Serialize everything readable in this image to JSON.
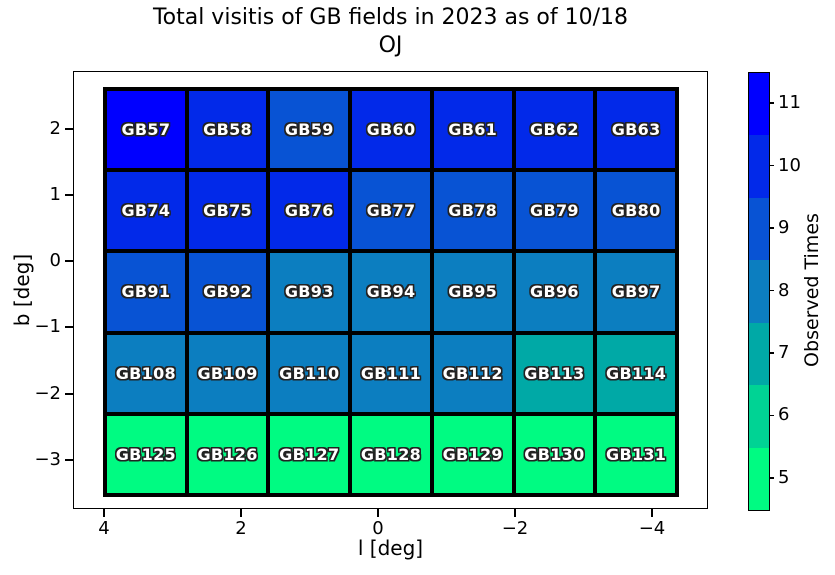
{
  "chart_data": {
    "type": "heatmap",
    "title": "Total visitis of GB fields in 2023 as of 10/18",
    "subtitle": "OJ",
    "xlabel": "l [deg]",
    "ylabel": "b [deg]",
    "x_tick_labels": [
      "4",
      "2",
      "0",
      "−2",
      "−4"
    ],
    "y_tick_labels": [
      "2",
      "1",
      "0",
      "−1",
      "−2",
      "−3"
    ],
    "x_axis_reversed": true,
    "grid_shape": {
      "rows": 5,
      "cols": 7
    },
    "colorbar": {
      "label": "Observed Times",
      "range": [
        4.5,
        11.5
      ],
      "tick_labels": [
        "11",
        "10",
        "9",
        "8",
        "7",
        "6",
        "5"
      ],
      "bins": [
        {
          "value": 11,
          "color": "#0000ff"
        },
        {
          "value": 10,
          "color": "#0229e9"
        },
        {
          "value": 9,
          "color": "#0853d4"
        },
        {
          "value": 8,
          "color": "#0c7ec0"
        },
        {
          "value": 7,
          "color": "#00a9a6"
        },
        {
          "value": 6,
          "color": "#00d394"
        },
        {
          "value": 5,
          "color": "#00fb82"
        }
      ]
    },
    "rows": [
      {
        "cells": [
          {
            "label": "GB57",
            "value": 11
          },
          {
            "label": "GB58",
            "value": 10
          },
          {
            "label": "GB59",
            "value": 9
          },
          {
            "label": "GB60",
            "value": 10
          },
          {
            "label": "GB61",
            "value": 10
          },
          {
            "label": "GB62",
            "value": 10
          },
          {
            "label": "GB63",
            "value": 10
          }
        ]
      },
      {
        "cells": [
          {
            "label": "GB74",
            "value": 10
          },
          {
            "label": "GB75",
            "value": 10
          },
          {
            "label": "GB76",
            "value": 10
          },
          {
            "label": "GB77",
            "value": 9
          },
          {
            "label": "GB78",
            "value": 9
          },
          {
            "label": "GB79",
            "value": 9
          },
          {
            "label": "GB80",
            "value": 9
          }
        ]
      },
      {
        "cells": [
          {
            "label": "GB91",
            "value": 9
          },
          {
            "label": "GB92",
            "value": 9
          },
          {
            "label": "GB93",
            "value": 8
          },
          {
            "label": "GB94",
            "value": 8
          },
          {
            "label": "GB95",
            "value": 8
          },
          {
            "label": "GB96",
            "value": 8
          },
          {
            "label": "GB97",
            "value": 8
          }
        ]
      },
      {
        "cells": [
          {
            "label": "GB108",
            "value": 8
          },
          {
            "label": "GB109",
            "value": 8
          },
          {
            "label": "GB110",
            "value": 8
          },
          {
            "label": "GB111",
            "value": 8
          },
          {
            "label": "GB112",
            "value": 8
          },
          {
            "label": "GB113",
            "value": 7
          },
          {
            "label": "GB114",
            "value": 7
          }
        ]
      },
      {
        "cells": [
          {
            "label": "GB125",
            "value": 5
          },
          {
            "label": "GB126",
            "value": 5
          },
          {
            "label": "GB127",
            "value": 5
          },
          {
            "label": "GB128",
            "value": 5
          },
          {
            "label": "GB129",
            "value": 5
          },
          {
            "label": "GB130",
            "value": 5
          },
          {
            "label": "GB131",
            "value": 5
          }
        ]
      }
    ]
  }
}
